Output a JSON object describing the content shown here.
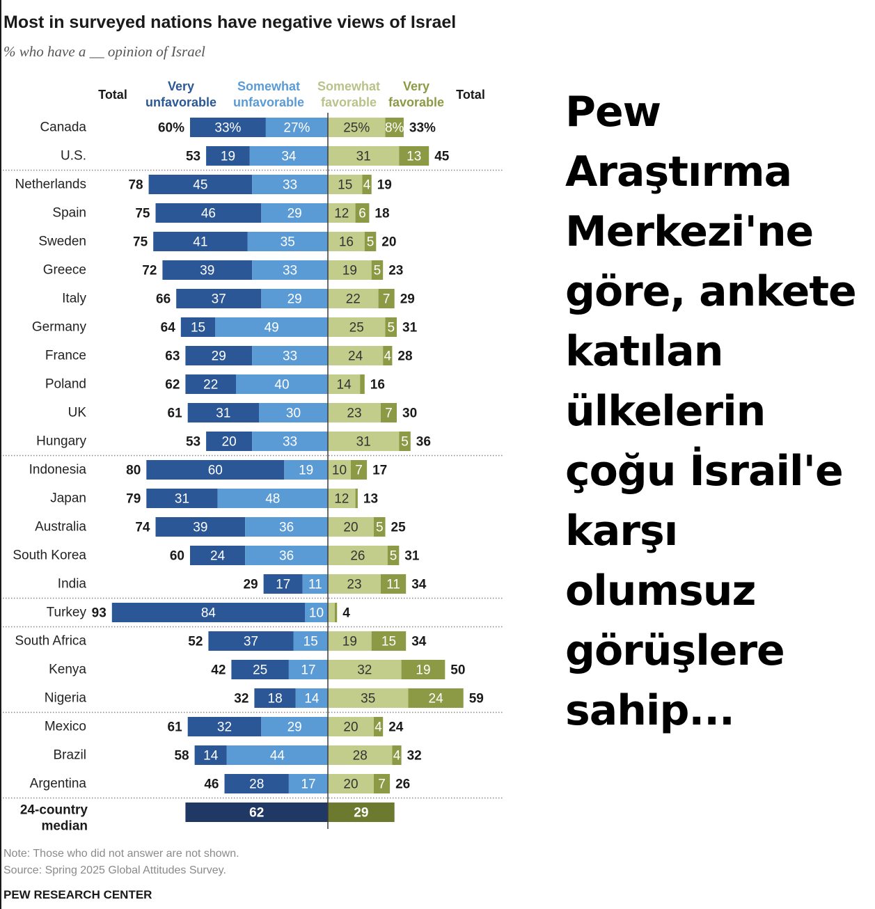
{
  "caption": "Pew Araştırma Merkezi'ne göre, ankete katılan ülkelerin çoğu İsrail'e karşı olumsuz görüşlere sahip...",
  "note": "Note: Those who did not answer are not shown.",
  "source": "Source: Spring 2025 Global Attitudes Survey.",
  "brand": "PEW RESEARCH CENTER",
  "colors": {
    "very_unfavorable": "#2b5797",
    "somewhat_unfavorable": "#5b9bd5",
    "somewhat_favorable": "#c2cd8c",
    "very_favorable": "#8c9a45",
    "median_unfavorable": "#1f3864",
    "median_favorable": "#6b7a2e",
    "header_unfavorable_very": "#2b5797",
    "header_unfavorable_somewhat": "#5b9bd5",
    "header_favorable_somewhat": "#b8c38a",
    "header_favorable_very": "#8c9a45"
  },
  "chart_data": {
    "type": "bar",
    "title": "Most in surveyed nations have negative views of Israel",
    "subtitle": "% who have a __ opinion of Israel",
    "headers": {
      "total_left": "Total",
      "very_unfavorable": [
        "Very",
        "unfavorable"
      ],
      "somewhat_unfavorable": [
        "Somewhat",
        "unfavorable"
      ],
      "somewhat_favorable": [
        "Somewhat",
        "favorable"
      ],
      "very_favorable": [
        "Very",
        "favorable"
      ],
      "total_right": "Total"
    },
    "rows": [
      {
        "country": "Canada",
        "unfav_total": "60%",
        "very_unfav": 33,
        "very_unfav_label": "33%",
        "smw_unfav": 27,
        "smw_unfav_label": "27%",
        "smw_fav": 25,
        "smw_fav_label": "25%",
        "very_fav": 8,
        "very_fav_label": "8%",
        "fav_total": "33%",
        "group": 1
      },
      {
        "country": "U.S.",
        "unfav_total": "53",
        "very_unfav": 19,
        "very_unfav_label": "19",
        "smw_unfav": 34,
        "smw_unfav_label": "34",
        "smw_fav": 31,
        "smw_fav_label": "31",
        "very_fav": 13,
        "very_fav_label": "13",
        "fav_total": "45",
        "group": 1
      },
      {
        "country": "Netherlands",
        "unfav_total": "78",
        "very_unfav": 45,
        "very_unfav_label": "45",
        "smw_unfav": 33,
        "smw_unfav_label": "33",
        "smw_fav": 15,
        "smw_fav_label": "15",
        "very_fav": 4,
        "very_fav_label": "4",
        "fav_total": "19",
        "group": 2
      },
      {
        "country": "Spain",
        "unfav_total": "75",
        "very_unfav": 46,
        "very_unfav_label": "46",
        "smw_unfav": 29,
        "smw_unfav_label": "29",
        "smw_fav": 12,
        "smw_fav_label": "12",
        "very_fav": 6,
        "very_fav_label": "6",
        "fav_total": "18",
        "group": 2
      },
      {
        "country": "Sweden",
        "unfav_total": "75",
        "very_unfav": 41,
        "very_unfav_label": "41",
        "smw_unfav": 35,
        "smw_unfav_label": "35",
        "smw_fav": 16,
        "smw_fav_label": "16",
        "very_fav": 5,
        "very_fav_label": "5",
        "fav_total": "20",
        "group": 2
      },
      {
        "country": "Greece",
        "unfav_total": "72",
        "very_unfav": 39,
        "very_unfav_label": "39",
        "smw_unfav": 33,
        "smw_unfav_label": "33",
        "smw_fav": 19,
        "smw_fav_label": "19",
        "very_fav": 5,
        "very_fav_label": "5",
        "fav_total": "23",
        "group": 2
      },
      {
        "country": "Italy",
        "unfav_total": "66",
        "very_unfav": 37,
        "very_unfav_label": "37",
        "smw_unfav": 29,
        "smw_unfav_label": "29",
        "smw_fav": 22,
        "smw_fav_label": "22",
        "very_fav": 7,
        "very_fav_label": "7",
        "fav_total": "29",
        "group": 2
      },
      {
        "country": "Germany",
        "unfav_total": "64",
        "very_unfav": 15,
        "very_unfav_label": "15",
        "smw_unfav": 49,
        "smw_unfav_label": "49",
        "smw_fav": 25,
        "smw_fav_label": "25",
        "very_fav": 5,
        "very_fav_label": "5",
        "fav_total": "31",
        "group": 2
      },
      {
        "country": "France",
        "unfav_total": "63",
        "very_unfav": 29,
        "very_unfav_label": "29",
        "smw_unfav": 33,
        "smw_unfav_label": "33",
        "smw_fav": 24,
        "smw_fav_label": "24",
        "very_fav": 4,
        "very_fav_label": "4",
        "fav_total": "28",
        "group": 2
      },
      {
        "country": "Poland",
        "unfav_total": "62",
        "very_unfav": 22,
        "very_unfav_label": "22",
        "smw_unfav": 40,
        "smw_unfav_label": "40",
        "smw_fav": 14,
        "smw_fav_label": "14",
        "very_fav": 2,
        "very_fav_label": "",
        "fav_total": "16",
        "group": 2
      },
      {
        "country": "UK",
        "unfav_total": "61",
        "very_unfav": 31,
        "very_unfav_label": "31",
        "smw_unfav": 30,
        "smw_unfav_label": "30",
        "smw_fav": 23,
        "smw_fav_label": "23",
        "very_fav": 7,
        "very_fav_label": "7",
        "fav_total": "30",
        "group": 2
      },
      {
        "country": "Hungary",
        "unfav_total": "53",
        "very_unfav": 20,
        "very_unfav_label": "20",
        "smw_unfav": 33,
        "smw_unfav_label": "33",
        "smw_fav": 31,
        "smw_fav_label": "31",
        "very_fav": 5,
        "very_fav_label": "5",
        "fav_total": "36",
        "group": 2
      },
      {
        "country": "Indonesia",
        "unfav_total": "80",
        "very_unfav": 60,
        "very_unfav_label": "60",
        "smw_unfav": 19,
        "smw_unfav_label": "19",
        "smw_fav": 10,
        "smw_fav_label": "10",
        "very_fav": 7,
        "very_fav_label": "7",
        "fav_total": "17",
        "group": 3
      },
      {
        "country": "Japan",
        "unfav_total": "79",
        "very_unfav": 31,
        "very_unfav_label": "31",
        "smw_unfav": 48,
        "smw_unfav_label": "48",
        "smw_fav": 12,
        "smw_fav_label": "12",
        "very_fav": 1,
        "very_fav_label": "",
        "fav_total": "13",
        "group": 3
      },
      {
        "country": "Australia",
        "unfav_total": "74",
        "very_unfav": 39,
        "very_unfav_label": "39",
        "smw_unfav": 36,
        "smw_unfav_label": "36",
        "smw_fav": 20,
        "smw_fav_label": "20",
        "very_fav": 5,
        "very_fav_label": "5",
        "fav_total": "25",
        "group": 3
      },
      {
        "country": "South Korea",
        "unfav_total": "60",
        "very_unfav": 24,
        "very_unfav_label": "24",
        "smw_unfav": 36,
        "smw_unfav_label": "36",
        "smw_fav": 26,
        "smw_fav_label": "26",
        "very_fav": 5,
        "very_fav_label": "5",
        "fav_total": "31",
        "group": 3
      },
      {
        "country": "India",
        "unfav_total": "29",
        "very_unfav": 17,
        "very_unfav_label": "17",
        "smw_unfav": 11,
        "smw_unfav_label": "11",
        "smw_fav": 23,
        "smw_fav_label": "23",
        "very_fav": 11,
        "very_fav_label": "11",
        "fav_total": "34",
        "group": 3
      },
      {
        "country": "Turkey",
        "unfav_total": "93",
        "very_unfav": 84,
        "very_unfav_label": "84",
        "smw_unfav": 10,
        "smw_unfav_label": "10",
        "smw_fav": 3,
        "smw_fav_label": "",
        "very_fav": 1,
        "very_fav_label": "",
        "fav_total": "4",
        "group": 4
      },
      {
        "country": "South Africa",
        "unfav_total": "52",
        "very_unfav": 37,
        "very_unfav_label": "37",
        "smw_unfav": 15,
        "smw_unfav_label": "15",
        "smw_fav": 19,
        "smw_fav_label": "19",
        "very_fav": 15,
        "very_fav_label": "15",
        "fav_total": "34",
        "group": 5
      },
      {
        "country": "Kenya",
        "unfav_total": "42",
        "very_unfav": 25,
        "very_unfav_label": "25",
        "smw_unfav": 17,
        "smw_unfav_label": "17",
        "smw_fav": 32,
        "smw_fav_label": "32",
        "very_fav": 19,
        "very_fav_label": "19",
        "fav_total": "50",
        "group": 5
      },
      {
        "country": "Nigeria",
        "unfav_total": "32",
        "very_unfav": 18,
        "very_unfav_label": "18",
        "smw_unfav": 14,
        "smw_unfav_label": "14",
        "smw_fav": 35,
        "smw_fav_label": "35",
        "very_fav": 24,
        "very_fav_label": "24",
        "fav_total": "59",
        "group": 5
      },
      {
        "country": "Mexico",
        "unfav_total": "61",
        "very_unfav": 32,
        "very_unfav_label": "32",
        "smw_unfav": 29,
        "smw_unfav_label": "29",
        "smw_fav": 20,
        "smw_fav_label": "20",
        "very_fav": 4,
        "very_fav_label": "4",
        "fav_total": "24",
        "group": 6
      },
      {
        "country": "Brazil",
        "unfav_total": "58",
        "very_unfav": 14,
        "very_unfav_label": "14",
        "smw_unfav": 44,
        "smw_unfav_label": "44",
        "smw_fav": 28,
        "smw_fav_label": "28",
        "very_fav": 4,
        "very_fav_label": "4",
        "fav_total": "32",
        "group": 6
      },
      {
        "country": "Argentina",
        "unfav_total": "46",
        "very_unfav": 28,
        "very_unfav_label": "28",
        "smw_unfav": 17,
        "smw_unfav_label": "17",
        "smw_fav": 20,
        "smw_fav_label": "20",
        "very_fav": 7,
        "very_fav_label": "7",
        "fav_total": "26",
        "group": 6
      }
    ],
    "median": {
      "label": [
        "24-country",
        "median"
      ],
      "unfavorable": 62,
      "favorable": 29
    }
  }
}
